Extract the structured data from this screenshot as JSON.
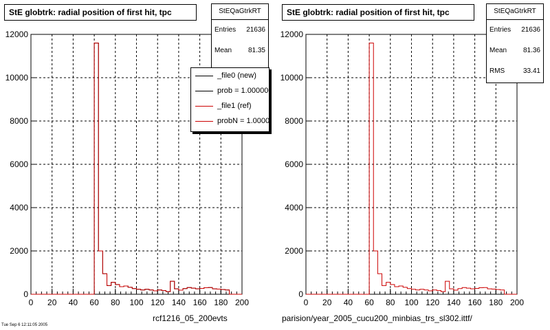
{
  "panels": [
    {
      "title": "StE globtrk: radial position of first hit, tpc",
      "stats": {
        "name": "StEQaGtrkRT",
        "rows": [
          {
            "label": "Entries",
            "value": "21636"
          },
          {
            "label": "Mean",
            "value": "81.35"
          }
        ]
      },
      "legend": {
        "entries": [
          {
            "text": "_file0 (new)",
            "color": "#000000"
          },
          {
            "text": "prob = 1.000000",
            "color": "#000000"
          },
          {
            "text": "_file1 (ref)",
            "color": "#cc0000"
          },
          {
            "text": "probN = 1.000000",
            "color": "#cc0000"
          }
        ]
      },
      "footer": "rcf1216_05_200evts",
      "corner_text": "Tue Sep 6 12:11:05 2005"
    },
    {
      "title": "StE globtrk: radial position of first hit, tpc",
      "stats": {
        "name": "StEQaGtrkRT",
        "rows": [
          {
            "label": "Entries",
            "value": "21636"
          },
          {
            "label": "Mean",
            "value": "81.36"
          },
          {
            "label": "RMS",
            "value": "33.41"
          }
        ]
      },
      "footer": "parision/year_2005_cucu200_minbias_trs_sl302.ittf/"
    }
  ],
  "chart_data": [
    {
      "type": "bar",
      "style": "step-histogram",
      "title": "StE globtrk: radial position of first hit, tpc",
      "xlim": [
        0,
        200
      ],
      "ylim": [
        0,
        12000
      ],
      "x_ticks": [
        0,
        20,
        40,
        60,
        80,
        100,
        120,
        140,
        160,
        180,
        200
      ],
      "y_ticks": [
        0,
        2000,
        4000,
        6000,
        8000,
        10000,
        12000
      ],
      "grid": true,
      "bin_width": 4,
      "series": [
        {
          "name": "_file0 (new)",
          "color": "#000000",
          "bin_edges_start": 0,
          "values": [
            0,
            0,
            0,
            0,
            0,
            0,
            0,
            0,
            0,
            0,
            0,
            0,
            0,
            0,
            0,
            11600,
            2000,
            950,
            400,
            550,
            450,
            350,
            380,
            320,
            260,
            230,
            200,
            230,
            200,
            160,
            200,
            170,
            120,
            600,
            250,
            190,
            260,
            310,
            280,
            250,
            270,
            300,
            310,
            250,
            240,
            220,
            200,
            0,
            0,
            0
          ]
        },
        {
          "name": "_file1 (ref)",
          "color": "#cc0000",
          "bin_edges_start": 0,
          "values": [
            0,
            0,
            0,
            0,
            0,
            0,
            0,
            0,
            0,
            0,
            0,
            0,
            0,
            0,
            0,
            11600,
            2000,
            950,
            400,
            550,
            450,
            350,
            380,
            320,
            260,
            230,
            200,
            230,
            200,
            160,
            200,
            170,
            120,
            600,
            250,
            190,
            260,
            310,
            280,
            250,
            270,
            300,
            310,
            250,
            240,
            220,
            200,
            0,
            0,
            0
          ]
        }
      ]
    },
    {
      "type": "bar",
      "style": "step-histogram",
      "title": "StE globtrk: radial position of first hit, tpc",
      "xlim": [
        0,
        200
      ],
      "ylim": [
        0,
        12000
      ],
      "x_ticks": [
        0,
        20,
        40,
        60,
        80,
        100,
        120,
        140,
        160,
        180,
        200
      ],
      "y_ticks": [
        0,
        2000,
        4000,
        6000,
        8000,
        10000,
        12000
      ],
      "grid": true,
      "bin_width": 4,
      "series": [
        {
          "name": "StEQaGtrkRT",
          "color": "#cc0000",
          "bin_edges_start": 0,
          "values": [
            0,
            0,
            0,
            0,
            0,
            0,
            0,
            0,
            0,
            0,
            0,
            0,
            0,
            0,
            0,
            11600,
            2000,
            950,
            400,
            550,
            450,
            350,
            380,
            320,
            260,
            230,
            200,
            230,
            200,
            160,
            200,
            170,
            120,
            600,
            250,
            190,
            260,
            310,
            280,
            250,
            270,
            300,
            310,
            250,
            240,
            220,
            200,
            0,
            0,
            0
          ]
        }
      ]
    }
  ]
}
